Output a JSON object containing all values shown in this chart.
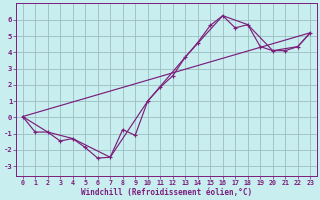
{
  "xlabel": "Windchill (Refroidissement éolien,°C)",
  "bg_color": "#c8eef0",
  "line_color": "#7b1f7b",
  "grid_color": "#9bbfbf",
  "xlim": [
    -0.5,
    23.5
  ],
  "ylim": [
    -3.6,
    7.0
  ],
  "xticks": [
    0,
    1,
    2,
    3,
    4,
    5,
    6,
    7,
    8,
    9,
    10,
    11,
    12,
    13,
    14,
    15,
    16,
    17,
    18,
    19,
    20,
    21,
    22,
    23
  ],
  "yticks": [
    -3,
    -2,
    -1,
    0,
    1,
    2,
    3,
    4,
    5,
    6
  ],
  "line1_x": [
    0,
    1,
    2,
    3,
    4,
    5,
    6,
    7,
    8,
    9,
    10,
    11,
    12,
    13,
    14,
    15,
    16,
    17,
    18,
    19,
    20,
    21,
    22,
    23
  ],
  "line1_y": [
    0.05,
    -0.9,
    -0.9,
    -1.45,
    -1.3,
    -1.85,
    -2.5,
    -2.45,
    -0.75,
    -1.1,
    1.0,
    1.85,
    2.55,
    3.7,
    4.6,
    5.65,
    6.25,
    5.5,
    5.7,
    4.35,
    4.1,
    4.1,
    4.35,
    5.2
  ],
  "line2_x": [
    0,
    23
  ],
  "line2_y": [
    0.05,
    5.2
  ],
  "line3_x": [
    0,
    2,
    4,
    7,
    10,
    13,
    16,
    18,
    20,
    22,
    23
  ],
  "line3_y": [
    0.05,
    -0.9,
    -1.3,
    -2.45,
    1.0,
    3.7,
    6.25,
    5.7,
    4.1,
    4.35,
    5.2
  ]
}
